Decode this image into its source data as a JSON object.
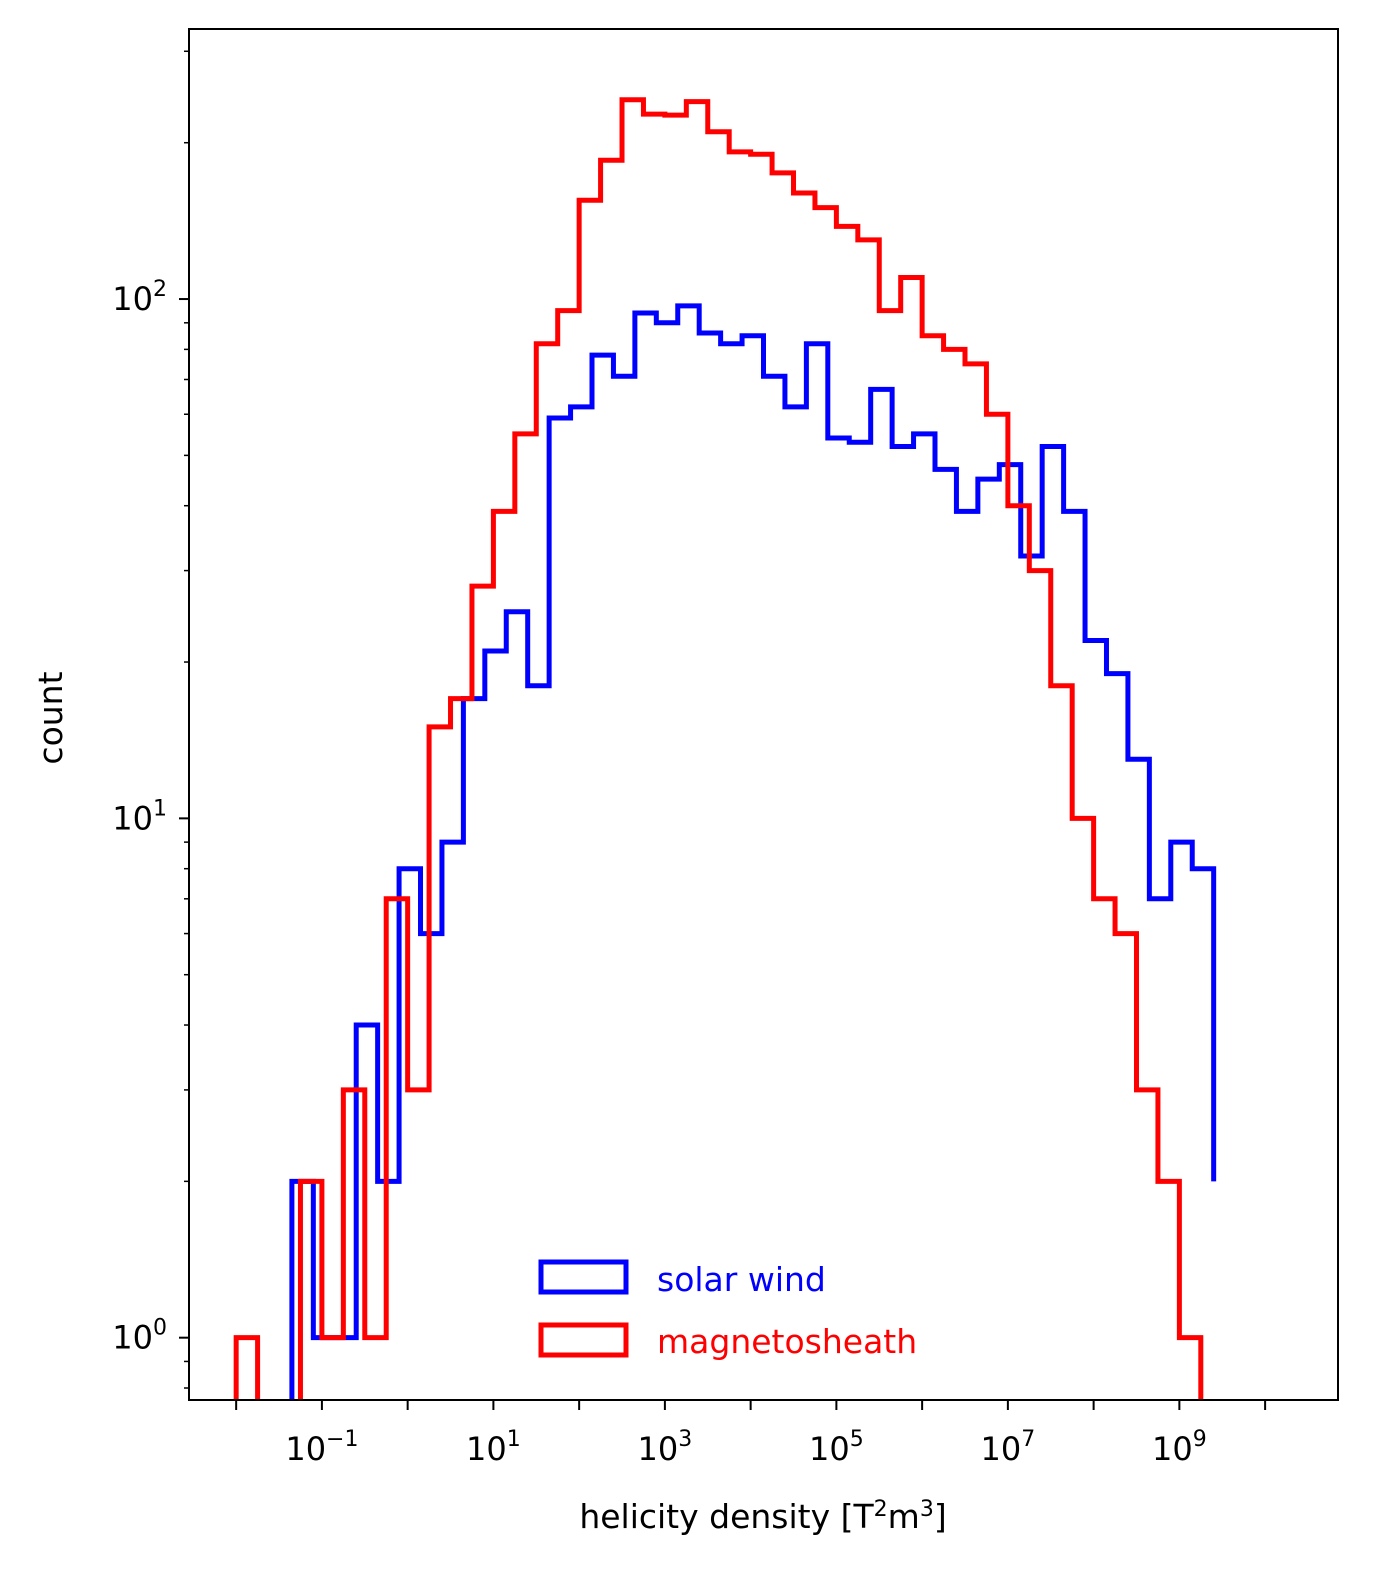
{
  "chart_data": {
    "type": "histogram-step",
    "xlabel": "helicity density [T²m³]",
    "xlabel_parts": {
      "main": "helicity density [T",
      "sup1": "2",
      "mid": "m",
      "sup2": "3",
      "end": "]"
    },
    "ylabel": "count",
    "xscale": "log",
    "yscale": "log",
    "xlim_log10": [
      -2.55,
      10.85
    ],
    "ylim_log10": [
      -0.12,
      2.52
    ],
    "x_ticks": [
      {
        "base": "10",
        "exp": "−1",
        "log10": -1
      },
      {
        "base": "10",
        "exp": "1",
        "log10": 1
      },
      {
        "base": "10",
        "exp": "3",
        "log10": 3
      },
      {
        "base": "10",
        "exp": "5",
        "log10": 5
      },
      {
        "base": "10",
        "exp": "7",
        "log10": 7
      },
      {
        "base": "10",
        "exp": "9",
        "log10": 9
      }
    ],
    "y_ticks": [
      {
        "base": "10",
        "exp": "0",
        "log10": 0
      },
      {
        "base": "10",
        "exp": "1",
        "log10": 1
      },
      {
        "base": "10",
        "exp": "2",
        "log10": 2
      }
    ],
    "legend_position": "lower center",
    "series": [
      {
        "name": "solar wind",
        "color": "#0000ff",
        "bin_edges_log10": [
          -1.35,
          -1.1,
          -0.85,
          -0.6,
          -0.35,
          -0.1,
          0.15,
          0.4,
          0.65,
          0.9,
          1.15,
          1.4,
          1.65,
          1.9,
          2.15,
          2.4,
          2.65,
          2.9,
          3.15,
          3.4,
          3.65,
          3.9,
          4.15,
          4.4,
          4.65,
          4.9,
          5.15,
          5.4,
          5.65,
          5.9,
          6.15,
          6.4,
          6.65,
          6.9,
          7.15,
          7.4,
          7.65,
          7.9,
          8.15,
          8.4,
          8.65,
          8.9,
          9.15,
          9.4
        ],
        "counts": [
          2,
          1,
          1,
          4,
          2,
          8,
          6,
          9,
          17,
          21,
          25,
          18,
          59,
          62,
          78,
          71,
          94,
          90,
          97,
          86,
          82,
          85,
          71,
          62,
          82,
          54,
          53,
          67,
          52,
          55,
          47,
          39,
          45,
          48,
          32,
          52,
          39,
          22,
          19,
          13,
          7,
          9,
          8,
          2
        ],
        "counts_annotations_note": ""
      },
      {
        "name": "magnetosheath",
        "color": "#ff0000",
        "bin_edges_log10": [
          -2.0,
          -1.75,
          -1.5,
          -1.25,
          -1.0,
          -0.75,
          -0.5,
          -0.25,
          0.0,
          0.25,
          0.5,
          0.75,
          1.0,
          1.25,
          1.5,
          1.75,
          2.0,
          2.25,
          2.5,
          2.75,
          3.0,
          3.25,
          3.5,
          3.75,
          4.0,
          4.25,
          4.5,
          4.75,
          5.0,
          5.25,
          5.5,
          5.75,
          6.0,
          6.25,
          6.5,
          6.75,
          7.0,
          7.25,
          7.5,
          7.75,
          8.0,
          8.25,
          8.5,
          8.75,
          9.0,
          9.25,
          9.5
        ],
        "counts": [
          1,
          0,
          0,
          2,
          1,
          3,
          1,
          7,
          3,
          15,
          17,
          28,
          39,
          55,
          82,
          95,
          155,
          185,
          242,
          227,
          226,
          240,
          210,
          192,
          190,
          175,
          160,
          150,
          138,
          130,
          95,
          110,
          85,
          80,
          75,
          60,
          40,
          30,
          18,
          10,
          7,
          6,
          3,
          2,
          1,
          0,
          0
        ],
        "counts_annotations_note": ""
      }
    ]
  }
}
